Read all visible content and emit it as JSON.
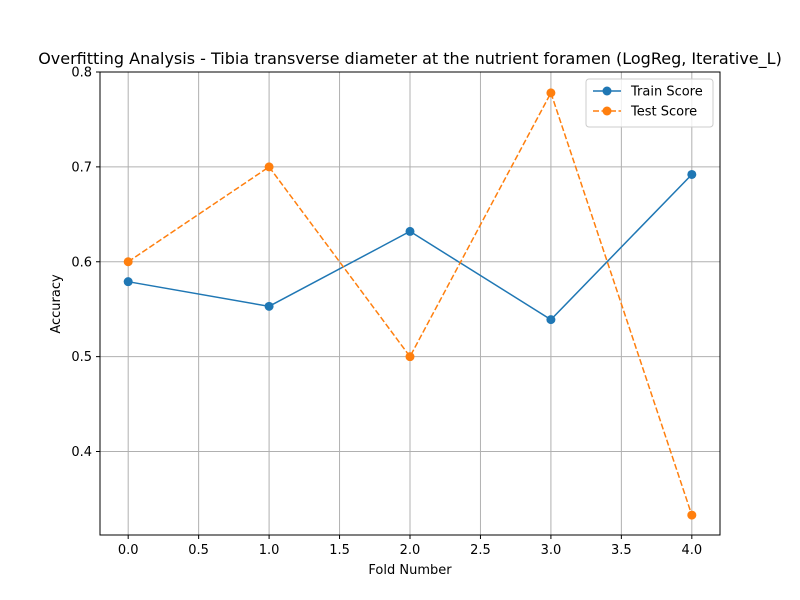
{
  "chart_data": {
    "type": "line",
    "title": "Overfitting Analysis - Tibia transverse diameter at the nutrient foramen (LogReg, Iterative_L)",
    "xlabel": "Fold Number",
    "ylabel": "Accuracy",
    "x": [
      0,
      1,
      2,
      3,
      4
    ],
    "xlim": [
      -0.2,
      4.2
    ],
    "ylim": [
      0.312,
      0.8
    ],
    "xticks": [
      0.0,
      0.5,
      1.0,
      1.5,
      2.0,
      2.5,
      3.0,
      3.5,
      4.0
    ],
    "xtick_labels": [
      "0.0",
      "0.5",
      "1.0",
      "1.5",
      "2.0",
      "2.5",
      "3.0",
      "3.5",
      "4.0"
    ],
    "yticks": [
      0.4,
      0.5,
      0.6,
      0.7,
      0.8
    ],
    "ytick_labels": [
      "0.4",
      "0.5",
      "0.6",
      "0.7",
      "0.8"
    ],
    "grid": true,
    "legend_position": "top-right",
    "series": [
      {
        "name": "Train Score",
        "values": [
          0.579,
          0.553,
          0.632,
          0.539,
          0.692
        ],
        "color": "#1f77b4",
        "linestyle": "solid",
        "marker": "circle"
      },
      {
        "name": "Test Score",
        "values": [
          0.6,
          0.7,
          0.5,
          0.778,
          0.333
        ],
        "color": "#ff7f0e",
        "linestyle": "dashed",
        "marker": "circle"
      }
    ]
  }
}
